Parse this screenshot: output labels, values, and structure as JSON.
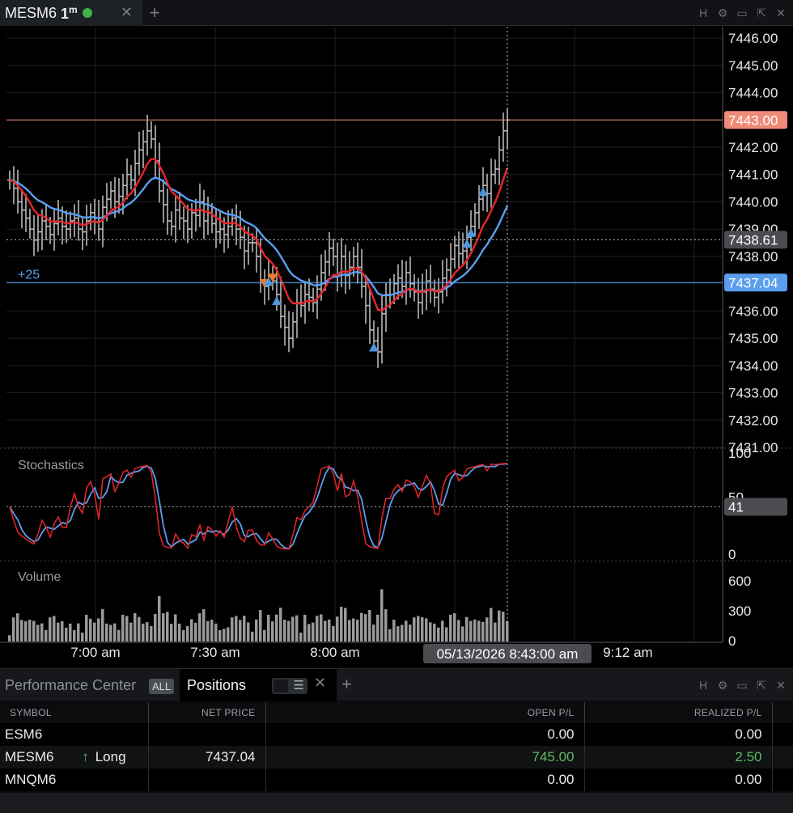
{
  "chart_tab": {
    "symbol": "MESM6",
    "interval": "1",
    "interval_unit": "m",
    "close_label": "✕",
    "add_label": "+",
    "window_icons": [
      "H",
      "⚙",
      "▭",
      "⇱",
      "✕"
    ]
  },
  "price_axis": {
    "ticks": [
      "7446.00",
      "7445.00",
      "7444.00",
      "7443.00",
      "7442.00",
      "7441.00",
      "7440.00",
      "7439.00",
      "7438.00",
      "7437.00",
      "7436.00",
      "7435.00",
      "7434.00",
      "7433.00",
      "7432.00",
      "7431.00"
    ],
    "last_price_badge": "7443.00",
    "crosshair_badge": "7438.61",
    "position_badge": "7437.04",
    "position_line_label": "+25"
  },
  "stochastics": {
    "title": "Stochastics",
    "ticks": [
      "100",
      "50",
      "0"
    ],
    "value_badge": "41"
  },
  "volume": {
    "title": "Volume",
    "ticks": [
      "600",
      "300",
      "0"
    ]
  },
  "time_axis": {
    "labels": [
      "7:00 am",
      "7:30 am",
      "8:00 am",
      "9:12 am"
    ],
    "crosshair_time": "05/13/2026 8:43:00 am"
  },
  "colors": {
    "up_ma": "#e8262b",
    "slow_ma": "#5b9ef0",
    "last_price_line": "#f08a78",
    "position_line": "#5b9ef0",
    "buy_marker": "#4e96d9",
    "sell_marker": "#f07a25",
    "bars": "#b8b8b8",
    "positive_pl": "#5fbd5f"
  },
  "bottom_panel": {
    "tab_performance": "Performance Center",
    "tab_all_badge": "ALL",
    "tab_positions": "Positions",
    "toggle_menu_icon": "☰",
    "close_label": "✕",
    "add_label": "+",
    "window_icons": [
      "H",
      "⚙",
      "▭",
      "⇱",
      "✕"
    ]
  },
  "positions_table": {
    "headers": {
      "symbol": "SYMBOL",
      "net_price": "NET PRICE",
      "open_pl": "OPEN P/L",
      "realized_pl": "REALIZED P/L"
    },
    "rows": [
      {
        "symbol": "ESM6",
        "side": "",
        "net_price": "",
        "open_pl": "0.00",
        "realized_pl": "0.00"
      },
      {
        "symbol": "MESM6",
        "side": "Long",
        "side_arrow": "↑",
        "net_price": "7437.04",
        "open_pl": "745.00",
        "realized_pl": "2.50"
      },
      {
        "symbol": "MNQM6",
        "side": "",
        "net_price": "",
        "open_pl": "0.00",
        "realized_pl": "0.00"
      }
    ]
  },
  "chart_data": {
    "type": "line",
    "title": "",
    "ylim": [
      7431,
      7446.3
    ],
    "close_series": [
      7440.8,
      7440.5,
      7440.0,
      7439.7,
      7439.4,
      7439.0,
      7438.6,
      7438.9,
      7439.3,
      7439.1,
      7438.8,
      7439.2,
      7439.4,
      7439.1,
      7439.0,
      7439.3,
      7439.4,
      7439.0,
      7438.9,
      7439.3,
      7439.6,
      7439.4,
      7439.0,
      7439.8,
      7440.1,
      7440.4,
      7440.0,
      7440.2,
      7440.6,
      7441.0,
      7440.8,
      7441.4,
      7441.9,
      7442.2,
      7442.6,
      7442.3,
      7441.5,
      7440.4,
      7439.9,
      7439.3,
      7439.1,
      7439.7,
      7439.4,
      7439.3,
      7439.0,
      7439.6,
      7439.5,
      7440.0,
      7439.3,
      7439.6,
      7439.2,
      7438.9,
      7439.0,
      7438.8,
      7439.1,
      7439.4,
      7439.0,
      7438.7,
      7438.2,
      7438.5,
      7438.5,
      7438.0,
      7437.1,
      7436.9,
      7437.3,
      7437.1,
      7436.6,
      7435.8,
      7435.4,
      7435.0,
      7435.6,
      7436.3,
      7436.2,
      7436.6,
      7436.5,
      7436.3,
      7436.8,
      7437.4,
      7437.8,
      7438.3,
      7438.0,
      7437.3,
      7438.0,
      7437.3,
      7437.6,
      7438.0,
      7437.6,
      7436.9,
      7436.2,
      7435.3,
      7434.9,
      7434.5,
      7435.9,
      7436.6,
      7436.6,
      7437.0,
      7437.2,
      7436.9,
      7437.4,
      7437.0,
      7436.7,
      7436.3,
      7436.7,
      7437.1,
      7436.8,
      7436.5,
      7436.7,
      7437.2,
      7437.5,
      7437.9,
      7438.4,
      7438.1,
      7438.2,
      7438.7,
      7439.1,
      7439.6,
      7440.1,
      7440.6,
      7440.3,
      7441.0,
      7441.2,
      7441.9,
      7442.6,
      7443.0
    ]
  }
}
